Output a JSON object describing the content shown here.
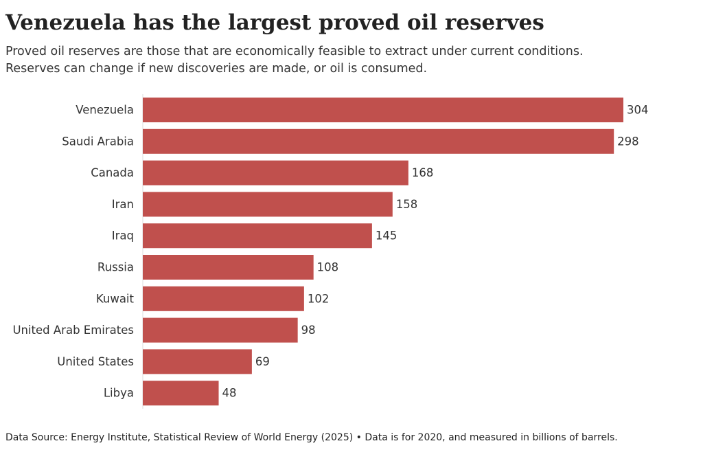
{
  "chart_data": {
    "type": "bar",
    "orientation": "horizontal",
    "title": "Venezuela has the largest proved oil reserves",
    "subtitle": [
      "Proved oil reserves are those that are economically feasible to extract under current conditions.",
      "Reserves can change if new discoveries are made, or oil is consumed."
    ],
    "categories": [
      "Venezuela",
      "Saudi Arabia",
      "Canada",
      "Iran",
      "Iraq",
      "Russia",
      "Kuwait",
      "United Arab Emirates",
      "United States",
      "Libya"
    ],
    "values": [
      304,
      298,
      168,
      158,
      145,
      108,
      102,
      98,
      69,
      48
    ],
    "color": "#c0504d",
    "xlim": [
      0,
      304
    ],
    "footnote": "Data Source: Energy Institute, Statistical Review of World Energy (2025) • Data is for 2020, and measured in billions of barrels."
  }
}
